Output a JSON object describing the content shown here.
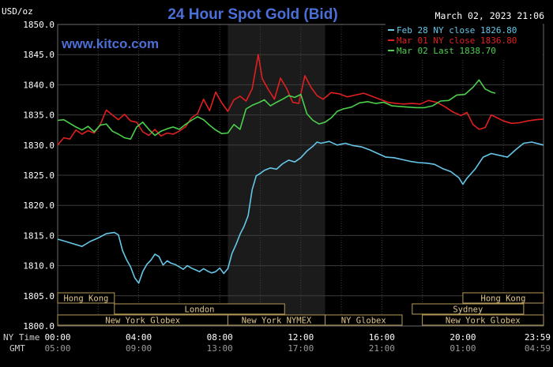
{
  "chart_data": {
    "type": "line",
    "title": "24 Hour Spot Gold (Bid)",
    "unit_label": "USD/oz",
    "date_label": "March 02, 2023 21:06",
    "watermark": "www.kitco.com",
    "ylim": [
      1800,
      1850
    ],
    "y_ticks": [
      "1850.0",
      "1845.0",
      "1840.0",
      "1835.0",
      "1830.0",
      "1825.0",
      "1820.0",
      "1815.0",
      "1810.0",
      "1805.0",
      "1800.0"
    ],
    "x_ticks_ny": [
      "00:00",
      "04:00",
      "08:00",
      "12:00",
      "16:00",
      "20:00",
      "23:59"
    ],
    "x_ticks_gmt": [
      "05:00",
      "09:00",
      "13:00",
      "17:00",
      "21:00",
      "01:00",
      "04:59"
    ],
    "row_label_ny": "NY Time",
    "row_label_gmt": "GMT",
    "grid": true,
    "legend_position": "top-right",
    "series": [
      {
        "name": "Feb 28 NY close 1826.80",
        "color": "#66c6e8",
        "points": [
          [
            0,
            1814.4
          ],
          [
            0.4,
            1814.0
          ],
          [
            0.8,
            1813.6
          ],
          [
            1.2,
            1813.2
          ],
          [
            1.6,
            1814.0
          ],
          [
            2.0,
            1814.6
          ],
          [
            2.4,
            1815.3
          ],
          [
            2.8,
            1815.5
          ],
          [
            3.0,
            1815.1
          ],
          [
            3.2,
            1812.5
          ],
          [
            3.4,
            1811.0
          ],
          [
            3.6,
            1809.8
          ],
          [
            3.8,
            1808.0
          ],
          [
            4.0,
            1807.1
          ],
          [
            4.2,
            1809.0
          ],
          [
            4.4,
            1810.2
          ],
          [
            4.6,
            1810.9
          ],
          [
            4.8,
            1811.9
          ],
          [
            5.0,
            1811.5
          ],
          [
            5.2,
            1810.1
          ],
          [
            5.4,
            1810.8
          ],
          [
            5.6,
            1810.4
          ],
          [
            5.8,
            1810.2
          ],
          [
            6.0,
            1809.8
          ],
          [
            6.2,
            1809.4
          ],
          [
            6.4,
            1810.0
          ],
          [
            6.6,
            1809.6
          ],
          [
            6.8,
            1809.3
          ],
          [
            7.0,
            1809.0
          ],
          [
            7.2,
            1809.5
          ],
          [
            7.4,
            1809.1
          ],
          [
            7.6,
            1808.8
          ],
          [
            7.8,
            1809.0
          ],
          [
            8.0,
            1809.6
          ],
          [
            8.2,
            1808.7
          ],
          [
            8.4,
            1809.5
          ],
          [
            8.6,
            1812.0
          ],
          [
            8.8,
            1813.5
          ],
          [
            9.0,
            1815.2
          ],
          [
            9.2,
            1816.5
          ],
          [
            9.4,
            1818.3
          ],
          [
            9.6,
            1822.6
          ],
          [
            9.8,
            1824.9
          ],
          [
            10.0,
            1825.3
          ],
          [
            10.2,
            1825.8
          ],
          [
            10.5,
            1826.2
          ],
          [
            10.8,
            1826.0
          ],
          [
            11.1,
            1826.9
          ],
          [
            11.4,
            1827.5
          ],
          [
            11.7,
            1827.2
          ],
          [
            12.0,
            1827.9
          ],
          [
            12.3,
            1829.0
          ],
          [
            12.6,
            1829.8
          ],
          [
            12.8,
            1830.5
          ],
          [
            13.0,
            1830.3
          ],
          [
            13.4,
            1830.6
          ],
          [
            13.8,
            1830.0
          ],
          [
            14.2,
            1830.3
          ],
          [
            14.6,
            1829.9
          ],
          [
            15.0,
            1829.7
          ],
          [
            15.4,
            1829.2
          ],
          [
            15.8,
            1828.6
          ],
          [
            16.2,
            1828.0
          ],
          [
            16.6,
            1827.9
          ],
          [
            17.0,
            1827.6
          ],
          [
            17.4,
            1827.3
          ],
          [
            17.8,
            1827.1
          ],
          [
            18.2,
            1827.0
          ],
          [
            18.6,
            1826.8
          ],
          [
            19.0,
            1826.1
          ],
          [
            19.4,
            1825.6
          ],
          [
            19.8,
            1824.6
          ],
          [
            20.0,
            1823.5
          ],
          [
            20.2,
            1824.5
          ],
          [
            20.6,
            1826.0
          ],
          [
            21.0,
            1828.0
          ],
          [
            21.4,
            1828.6
          ],
          [
            21.8,
            1828.3
          ],
          [
            22.2,
            1828.0
          ],
          [
            22.6,
            1829.2
          ],
          [
            23.0,
            1830.3
          ],
          [
            23.4,
            1830.5
          ],
          [
            23.98,
            1830.0
          ]
        ]
      },
      {
        "name": "Mar 01 NY close 1836.80",
        "color": "#e02020",
        "points": [
          [
            0,
            1830.0
          ],
          [
            0.3,
            1831.2
          ],
          [
            0.6,
            1831.0
          ],
          [
            0.9,
            1832.5
          ],
          [
            1.2,
            1831.8
          ],
          [
            1.5,
            1832.4
          ],
          [
            1.8,
            1832.0
          ],
          [
            2.1,
            1833.4
          ],
          [
            2.4,
            1835.8
          ],
          [
            2.7,
            1835.0
          ],
          [
            3.0,
            1834.2
          ],
          [
            3.3,
            1835.1
          ],
          [
            3.6,
            1834.0
          ],
          [
            3.9,
            1833.8
          ],
          [
            4.2,
            1832.2
          ],
          [
            4.5,
            1831.6
          ],
          [
            4.8,
            1832.6
          ],
          [
            5.1,
            1831.5
          ],
          [
            5.4,
            1832.0
          ],
          [
            5.7,
            1831.8
          ],
          [
            6.0,
            1832.3
          ],
          [
            6.3,
            1833.0
          ],
          [
            6.6,
            1834.5
          ],
          [
            6.9,
            1835.2
          ],
          [
            7.2,
            1837.6
          ],
          [
            7.5,
            1835.7
          ],
          [
            7.8,
            1838.8
          ],
          [
            8.1,
            1837.0
          ],
          [
            8.4,
            1835.6
          ],
          [
            8.7,
            1837.5
          ],
          [
            9.0,
            1838.1
          ],
          [
            9.3,
            1837.3
          ],
          [
            9.6,
            1839.3
          ],
          [
            9.9,
            1845.0
          ],
          [
            10.1,
            1841.0
          ],
          [
            10.4,
            1839.2
          ],
          [
            10.7,
            1837.6
          ],
          [
            11.0,
            1841.1
          ],
          [
            11.3,
            1839.4
          ],
          [
            11.6,
            1837.1
          ],
          [
            11.9,
            1836.9
          ],
          [
            12.2,
            1841.5
          ],
          [
            12.5,
            1839.6
          ],
          [
            12.8,
            1838.2
          ],
          [
            13.1,
            1837.6
          ],
          [
            13.5,
            1838.7
          ],
          [
            13.9,
            1838.5
          ],
          [
            14.3,
            1838.0
          ],
          [
            14.7,
            1838.3
          ],
          [
            15.1,
            1838.6
          ],
          [
            15.5,
            1838.1
          ],
          [
            15.9,
            1837.6
          ],
          [
            16.3,
            1837.1
          ],
          [
            16.7,
            1836.9
          ],
          [
            17.1,
            1836.8
          ],
          [
            17.5,
            1836.9
          ],
          [
            17.9,
            1836.8
          ],
          [
            18.3,
            1837.4
          ],
          [
            18.7,
            1837.1
          ],
          [
            19.1,
            1836.4
          ],
          [
            19.5,
            1835.5
          ],
          [
            19.9,
            1834.9
          ],
          [
            20.2,
            1835.4
          ],
          [
            20.5,
            1833.4
          ],
          [
            20.8,
            1832.6
          ],
          [
            21.1,
            1832.9
          ],
          [
            21.4,
            1835.0
          ],
          [
            21.7,
            1834.5
          ],
          [
            22.0,
            1834.0
          ],
          [
            22.4,
            1833.6
          ],
          [
            22.8,
            1833.7
          ],
          [
            23.2,
            1834.0
          ],
          [
            23.6,
            1834.2
          ],
          [
            23.98,
            1834.3
          ]
        ]
      },
      {
        "name": "Mar 02 Last 1838.70",
        "color": "#4ccf4c",
        "points": [
          [
            0,
            1834.1
          ],
          [
            0.3,
            1834.2
          ],
          [
            0.6,
            1833.6
          ],
          [
            0.9,
            1833.0
          ],
          [
            1.2,
            1832.5
          ],
          [
            1.5,
            1833.1
          ],
          [
            1.8,
            1832.2
          ],
          [
            2.1,
            1833.3
          ],
          [
            2.4,
            1833.5
          ],
          [
            2.7,
            1832.3
          ],
          [
            3.0,
            1831.8
          ],
          [
            3.3,
            1831.2
          ],
          [
            3.6,
            1831.0
          ],
          [
            3.9,
            1833.0
          ],
          [
            4.2,
            1833.8
          ],
          [
            4.5,
            1832.6
          ],
          [
            4.8,
            1831.6
          ],
          [
            5.1,
            1832.3
          ],
          [
            5.4,
            1832.7
          ],
          [
            5.7,
            1833.0
          ],
          [
            6.0,
            1832.6
          ],
          [
            6.3,
            1833.4
          ],
          [
            6.6,
            1834.1
          ],
          [
            6.9,
            1834.7
          ],
          [
            7.2,
            1834.2
          ],
          [
            7.5,
            1833.3
          ],
          [
            7.8,
            1832.5
          ],
          [
            8.1,
            1831.9
          ],
          [
            8.4,
            1832.0
          ],
          [
            8.7,
            1833.4
          ],
          [
            9.0,
            1832.6
          ],
          [
            9.3,
            1836.0
          ],
          [
            9.6,
            1836.6
          ],
          [
            9.9,
            1837.0
          ],
          [
            10.2,
            1837.5
          ],
          [
            10.5,
            1836.5
          ],
          [
            10.8,
            1837.1
          ],
          [
            11.1,
            1837.6
          ],
          [
            11.4,
            1838.2
          ],
          [
            11.7,
            1837.9
          ],
          [
            12.0,
            1838.4
          ],
          [
            12.3,
            1835.2
          ],
          [
            12.6,
            1834.1
          ],
          [
            12.9,
            1833.5
          ],
          [
            13.2,
            1833.8
          ],
          [
            13.5,
            1834.5
          ],
          [
            13.8,
            1835.6
          ],
          [
            14.1,
            1836.0
          ],
          [
            14.5,
            1836.3
          ],
          [
            14.9,
            1837.0
          ],
          [
            15.3,
            1837.2
          ],
          [
            15.7,
            1836.9
          ],
          [
            16.1,
            1837.1
          ],
          [
            16.5,
            1836.5
          ],
          [
            16.9,
            1836.4
          ],
          [
            17.3,
            1836.3
          ],
          [
            17.7,
            1836.2
          ],
          [
            18.1,
            1836.2
          ],
          [
            18.5,
            1836.5
          ],
          [
            18.9,
            1837.3
          ],
          [
            19.3,
            1837.4
          ],
          [
            19.7,
            1838.3
          ],
          [
            20.1,
            1838.4
          ],
          [
            20.5,
            1839.6
          ],
          [
            20.8,
            1840.8
          ],
          [
            21.1,
            1839.3
          ],
          [
            21.4,
            1838.8
          ],
          [
            21.6,
            1838.6
          ]
        ]
      }
    ],
    "sessions": [
      {
        "name": "Hong Kong",
        "start": 0,
        "end": 2.8,
        "row": 0
      },
      {
        "name": "Hong Kong",
        "start": 20.0,
        "end": 23.98,
        "row": 0
      },
      {
        "name": "London",
        "start": 2.8,
        "end": 11.2,
        "row": 1
      },
      {
        "name": "Sydney",
        "start": 17.5,
        "end": 23.0,
        "row": 1
      },
      {
        "name": "New York Globex",
        "start": 0,
        "end": 8.4,
        "row": 2
      },
      {
        "name": "New York NYMEX",
        "start": 8.4,
        "end": 13.2,
        "row": 2
      },
      {
        "name": "NY Globex",
        "start": 13.2,
        "end": 17.0,
        "row": 2
      },
      {
        "name": "New York Globex",
        "start": 18.0,
        "end": 23.98,
        "row": 2
      }
    ],
    "shaded_range": [
      8.4,
      13.2
    ]
  }
}
